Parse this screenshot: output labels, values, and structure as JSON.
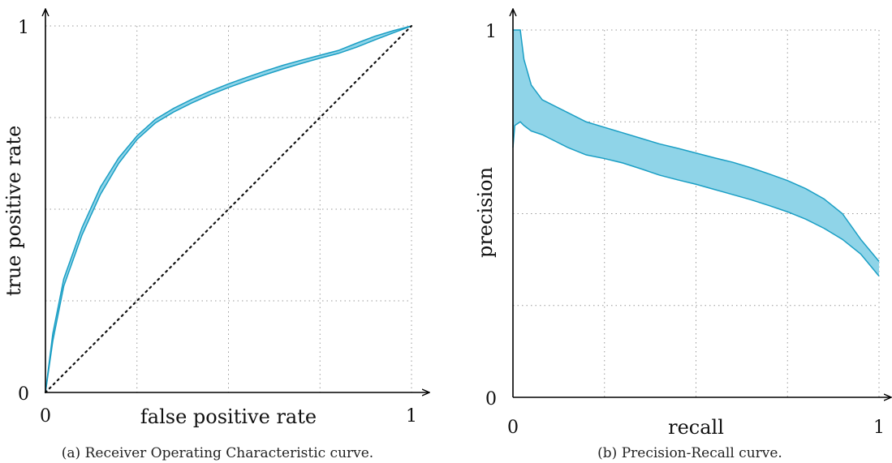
{
  "chart_data": [
    {
      "type": "area",
      "caption": "(a) Receiver Operating Characteristic curve.",
      "xlabel": "false positive rate",
      "ylabel": "true positive rate",
      "xlim": [
        0,
        1
      ],
      "ylim": [
        0,
        1
      ],
      "xticks": [
        "0",
        "1"
      ],
      "yticks": [
        "0",
        "1"
      ],
      "grid": true,
      "color": "#1a9ec4",
      "fill_color": "#8fd4e8",
      "band": {
        "x": [
          0,
          0.02,
          0.05,
          0.1,
          0.15,
          0.2,
          0.25,
          0.3,
          0.35,
          0.4,
          0.45,
          0.5,
          0.55,
          0.6,
          0.65,
          0.7,
          0.75,
          0.8,
          0.85,
          0.9,
          0.95,
          1.0
        ],
        "upper": [
          0,
          0.16,
          0.31,
          0.45,
          0.56,
          0.64,
          0.7,
          0.745,
          0.775,
          0.8,
          0.822,
          0.842,
          0.86,
          0.877,
          0.893,
          0.907,
          0.92,
          0.933,
          0.953,
          0.972,
          0.987,
          1.0
        ],
        "lower": [
          0,
          0.14,
          0.29,
          0.43,
          0.54,
          0.625,
          0.69,
          0.735,
          0.765,
          0.79,
          0.812,
          0.832,
          0.85,
          0.867,
          0.883,
          0.898,
          0.912,
          0.925,
          0.942,
          0.962,
          0.981,
          1.0
        ]
      },
      "diagonal": {
        "x": [
          0,
          1
        ],
        "y": [
          0,
          1
        ],
        "style": "dotted"
      }
    },
    {
      "type": "area",
      "caption": "(b) Precision-Recall curve.",
      "xlabel": "recall",
      "ylabel": "precision",
      "xlim": [
        0,
        1
      ],
      "ylim": [
        0,
        1
      ],
      "xticks": [
        "0",
        "1"
      ],
      "yticks": [
        "0",
        "1"
      ],
      "grid": true,
      "color": "#1a9ec4",
      "fill_color": "#8fd4e8",
      "band": {
        "x": [
          0,
          0.005,
          0.02,
          0.03,
          0.05,
          0.08,
          0.1,
          0.15,
          0.2,
          0.25,
          0.3,
          0.35,
          0.4,
          0.45,
          0.5,
          0.55,
          0.6,
          0.65,
          0.7,
          0.75,
          0.8,
          0.85,
          0.9,
          0.95,
          1.0
        ],
        "upper": [
          1.0,
          1.0,
          1.0,
          0.92,
          0.85,
          0.81,
          0.8,
          0.775,
          0.75,
          0.735,
          0.72,
          0.705,
          0.69,
          0.678,
          0.665,
          0.652,
          0.64,
          0.625,
          0.608,
          0.59,
          0.568,
          0.54,
          0.5,
          0.43,
          0.37
        ],
        "lower": [
          0.68,
          0.74,
          0.75,
          0.74,
          0.725,
          0.715,
          0.705,
          0.68,
          0.66,
          0.65,
          0.638,
          0.622,
          0.605,
          0.592,
          0.58,
          0.566,
          0.552,
          0.538,
          0.522,
          0.505,
          0.485,
          0.46,
          0.43,
          0.39,
          0.33
        ]
      }
    }
  ]
}
